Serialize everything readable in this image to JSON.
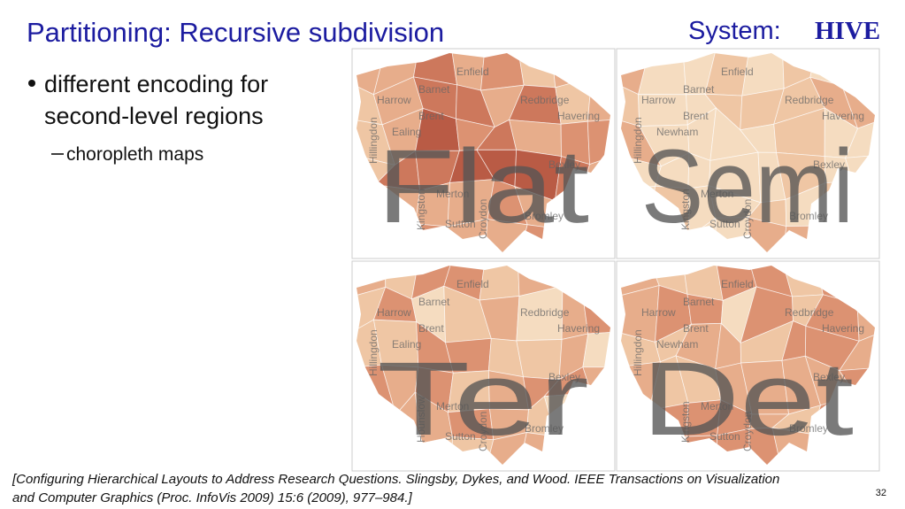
{
  "header": {
    "title": "Partitioning: Recursive subdivision",
    "system_label": "System:",
    "system_name": "HIVE"
  },
  "content": {
    "bullet_lines": [
      "different encoding for",
      "second-level regions"
    ],
    "sub_bullet": "choropleth maps"
  },
  "panels": [
    {
      "overlay": "Flat",
      "labels": [
        "Enfield",
        "Barnet",
        "Harrow",
        "Brent",
        "Redbridge",
        "Havering",
        "Hillingdon",
        "Ealing",
        "Bexley",
        "Kingston",
        "Merton",
        "Sutton",
        "Croydon",
        "Bromley"
      ]
    },
    {
      "overlay": "Semi",
      "labels": [
        "Enfield",
        "Barnet",
        "Harrow",
        "Brent",
        "Redbridge",
        "Havering",
        "Hillingdon",
        "Newham",
        "Bexley",
        "Kingston",
        "Merton",
        "Sutton",
        "Croydon",
        "Bromley"
      ]
    },
    {
      "overlay": "Ter",
      "labels": [
        "Enfield",
        "Barnet",
        "Harrow",
        "Brent",
        "Redbridge",
        "Havering",
        "Hillingdon",
        "Ealing",
        "Bexley",
        "Hounslow",
        "Merton",
        "Sutton",
        "Croydon",
        "Bromley"
      ]
    },
    {
      "overlay": "Det",
      "labels": [
        "Enfield",
        "Barnet",
        "Harrow",
        "Brent",
        "Redbridge",
        "Havering",
        "Hillingdon",
        "Newham",
        "Bexley",
        "Kingston",
        "Merton",
        "Sutton",
        "Croydon",
        "Bromley"
      ]
    }
  ],
  "citation": {
    "lines": [
      "[Configuring Hierarchical Layouts to Address Research Questions. Slingsby, Dykes, and Wood.  IEEE Transactions on Visualization",
      "and Computer Graphics (Proc. InfoVis 2009) 15:6 (2009), 977–984.]"
    ]
  },
  "page_number": "32"
}
